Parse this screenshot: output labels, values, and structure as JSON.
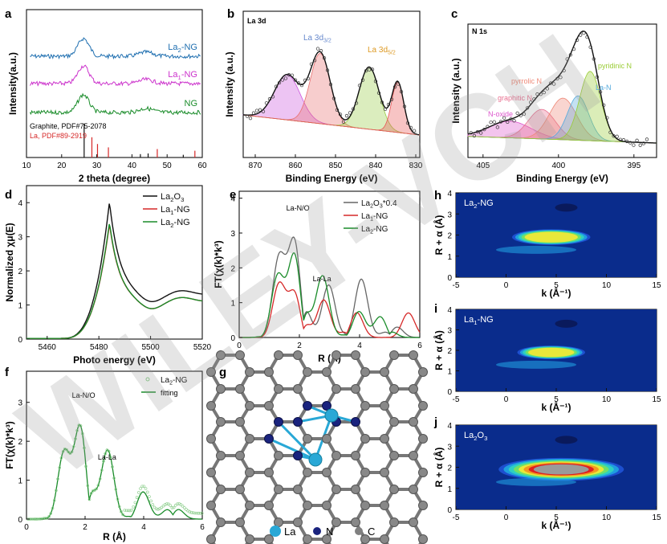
{
  "colors": {
    "blue": "#1f6fb0",
    "magenta": "#cc33cc",
    "green": "#1a8c2a",
    "red": "#d62828",
    "black": "#111111",
    "la": "#29a8d6",
    "n": "#1a237e",
    "c": "#808080"
  },
  "chart_data": [
    {
      "panel": "a",
      "type": "line",
      "title": "",
      "xlabel": "2 theta (degree)",
      "ylabel": "Intensity(a.u.)",
      "xlim": [
        10,
        60
      ],
      "xticks": [
        "10",
        "20",
        "30",
        "40",
        "50",
        "60"
      ],
      "series": [
        {
          "name": "La2-NG",
          "label_main": "La",
          "label_sub": "2",
          "label_tail": "-NG",
          "offset": 55,
          "color": "#1f6fb0"
        },
        {
          "name": "La1-NG",
          "label_main": "La",
          "label_sub": "1",
          "label_tail": "-NG",
          "offset": 30,
          "color": "#cc33cc"
        },
        {
          "name": "NG",
          "label_main": "NG",
          "label_sub": "",
          "label_tail": "",
          "offset": 5,
          "color": "#1a8c2a"
        }
      ],
      "peak_center": 26.2,
      "ref1": {
        "name": "Graphite, PDF#75-2078",
        "lines": [
          26.4,
          42.4,
          44.6,
          54.6
        ],
        "heights": [
          1.0,
          0.1,
          0.12,
          0.08
        ]
      },
      "ref2": {
        "name": "La, PDF#89-2919",
        "lines": [
          28.6,
          30.2,
          33.3,
          47.2,
          57.9
        ],
        "heights": [
          0.6,
          0.4,
          0.3,
          0.25,
          0.2
        ]
      }
    },
    {
      "panel": "b",
      "type": "line",
      "title": "La 3d",
      "xlabel": "Binding Energy (eV)",
      "ylabel": "Intensity (a.u.)",
      "xlim": [
        873,
        829
      ],
      "xticks": [
        "870",
        "860",
        "850",
        "840",
        "830"
      ],
      "annot1": {
        "main": "La 3d",
        "sub": "3/2"
      },
      "annot2": {
        "main": "La 3d",
        "sub": "5/2"
      },
      "peaks": [
        {
          "c": 862,
          "h": 0.45,
          "w": 3.2,
          "color": "#cc55dd"
        },
        {
          "c": 853.8,
          "h": 0.7,
          "w": 2.5,
          "color": "#e87070"
        },
        {
          "c": 841.6,
          "h": 0.62,
          "w": 2.5,
          "color": "#99cc44"
        },
        {
          "c": 834.5,
          "h": 0.5,
          "w": 1.5,
          "color": "#e85555"
        }
      ]
    },
    {
      "panel": "c",
      "type": "line",
      "title": "N 1s",
      "xlabel": "Binding Energy (eV)",
      "ylabel": "Intensity (a.u.)",
      "xlim": [
        406,
        393.5
      ],
      "xticks": [
        "405",
        "400",
        "395"
      ],
      "components": [
        {
          "name": "N-oxide",
          "c": 403.2,
          "h": 0.18,
          "w": 1.4,
          "color": "#dd55cc"
        },
        {
          "name": "graphitic N",
          "c": 401.1,
          "h": 0.32,
          "w": 0.9,
          "color": "#e87090"
        },
        {
          "name": "pyrrolic N",
          "c": 399.7,
          "h": 0.45,
          "w": 0.9,
          "color": "#ee8877"
        },
        {
          "name": "La-N",
          "c": 398.7,
          "h": 0.48,
          "w": 0.7,
          "color": "#55aadd"
        },
        {
          "name": "pyridinic N",
          "c": 397.9,
          "h": 0.75,
          "w": 0.7,
          "color": "#99cc33"
        }
      ]
    },
    {
      "panel": "d",
      "type": "line",
      "title": "",
      "xlabel": "Photo energy (eV)",
      "ylabel": "Normalized χμ(E)",
      "xlim": [
        5452,
        5520
      ],
      "ylim": [
        0,
        4.5
      ],
      "xticks": [
        "5460",
        "5480",
        "5500",
        "5520"
      ],
      "yticks": [
        "0",
        "1",
        "2",
        "3",
        "4"
      ],
      "series": [
        {
          "name": "La2O3",
          "label_main": "La",
          "label_sub": "2",
          "label_tail": "O",
          "label_sub2": "3",
          "peak": 4.1,
          "tail": 1.3,
          "color": "#111111"
        },
        {
          "name": "La1-NG",
          "label_main": "La",
          "label_sub": "1",
          "label_tail": "-NG",
          "label_sub2": "",
          "peak": 3.45,
          "tail": 1.1,
          "color": "#d62828"
        },
        {
          "name": "La2-NG",
          "label_main": "La",
          "label_sub": "2",
          "label_tail": "-NG",
          "label_sub2": "",
          "peak": 3.5,
          "tail": 1.1,
          "color": "#1a8c2a"
        }
      ]
    },
    {
      "panel": "e",
      "type": "line",
      "title": "",
      "xlabel": "R (Å)",
      "ylabel": "FT(χ(k)*k³)",
      "xlim": [
        0,
        6
      ],
      "ylim": [
        0,
        4.2
      ],
      "xticks": [
        "0",
        "2",
        "4",
        "6"
      ],
      "yticks": [
        "0",
        "1",
        "2",
        "3",
        "4"
      ],
      "annot1": "La-N/O",
      "annot2": "La-La",
      "series": [
        {
          "name": "La2O3*0.4",
          "label_main": "La",
          "label_sub": "2",
          "label_tail": "O",
          "label_sub2": "3",
          "label_end": "*0.4",
          "color": "#666666",
          "peaks": [
            [
              1.3,
              1.95
            ],
            [
              1.95,
              3.7
            ],
            [
              3.0,
              1.3
            ],
            [
              4.0,
              1.6
            ],
            [
              5.1,
              0.5
            ]
          ]
        },
        {
          "name": "La1-NG",
          "label_main": "La",
          "label_sub": "1",
          "label_tail": "-NG",
          "label_sub2": "",
          "label_end": "",
          "color": "#d62828",
          "peaks": [
            [
              1.3,
              1.3
            ],
            [
              1.95,
              1.7
            ],
            [
              2.8,
              0.9
            ],
            [
              3.8,
              0.9
            ],
            [
              5.6,
              0.6
            ]
          ]
        },
        {
          "name": "La2-NG",
          "label_main": "La",
          "label_sub": "2",
          "label_tail": "-NG",
          "label_sub2": "",
          "label_end": "",
          "color": "#1a8c2a",
          "peaks": [
            [
              1.25,
              1.55
            ],
            [
              1.95,
              3.2
            ],
            [
              2.75,
              1.5
            ],
            [
              3.9,
              0.8
            ],
            [
              4.8,
              0.8
            ]
          ]
        }
      ]
    },
    {
      "panel": "f",
      "type": "line",
      "title": "",
      "xlabel": "R (Å)",
      "ylabel": "FT(χ(k)*k³)",
      "xlim": [
        0,
        6
      ],
      "ylim": [
        0,
        3.8
      ],
      "xticks": [
        "0",
        "2",
        "4",
        "6"
      ],
      "yticks": [
        "0",
        "1",
        "2",
        "3"
      ],
      "annot1": "La-N/O",
      "annot2": "La-La",
      "legend": [
        "La2-NG",
        "fitting"
      ],
      "legend1_main": "La",
      "legend1_sub": "2",
      "legend1_tail": "-NG",
      "legend2": "fitting",
      "peaks": [
        [
          1.25,
          1.5
        ],
        [
          1.95,
          3.2
        ],
        [
          2.75,
          1.5
        ],
        [
          3.9,
          0.75
        ],
        [
          5.0,
          0.55
        ]
      ]
    },
    {
      "panel": "g",
      "type": "diagram",
      "legend": [
        "La",
        "N",
        "C"
      ]
    },
    {
      "panel": "h",
      "type": "heatmap",
      "title_main": "La",
      "title_sub": "2",
      "title_tail": "-NG",
      "xlabel": "k (Å⁻¹)",
      "ylabel": "R + α (Å)",
      "xticks": [
        "-5",
        "0",
        "5",
        "10",
        "15"
      ],
      "yticks": [
        "0",
        "1",
        "2",
        "3",
        "4"
      ],
      "intensity": 0.55
    },
    {
      "panel": "i",
      "type": "heatmap",
      "title_main": "La",
      "title_sub": "1",
      "title_tail": "-NG",
      "xlabel": "k (Å⁻¹)",
      "ylabel": "R + α (Å)",
      "xticks": [
        "-5",
        "0",
        "5",
        "10",
        "15"
      ],
      "yticks": [
        "0",
        "1",
        "2",
        "3",
        "4"
      ],
      "intensity": 0.45
    },
    {
      "panel": "j",
      "type": "heatmap",
      "title_main": "La",
      "title_sub": "2",
      "title_tail": "O",
      "title_sub2": "3",
      "xlabel": "k (Å⁻¹)",
      "ylabel": "R + α (Å)",
      "xticks": [
        "-5",
        "0",
        "5",
        "10",
        "15"
      ],
      "yticks": [
        "0",
        "1",
        "2",
        "3",
        "4"
      ],
      "intensity": 1.0
    }
  ],
  "panel_letters": [
    "a",
    "b",
    "c",
    "d",
    "e",
    "f",
    "g",
    "h",
    "i",
    "j"
  ],
  "watermark": "WILEY-VCH"
}
